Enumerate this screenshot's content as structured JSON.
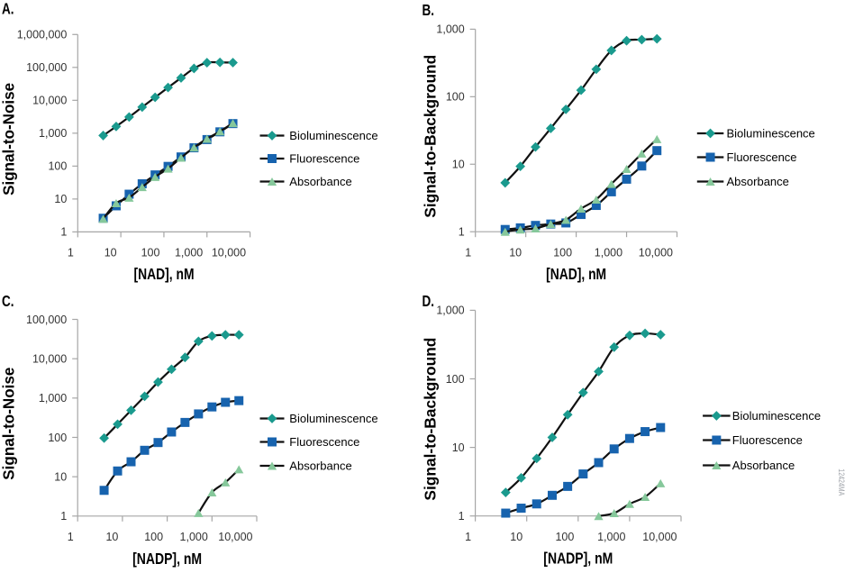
{
  "figure": {
    "side_code": "12424MA",
    "background": "#ffffff",
    "colors": {
      "series_line": "#111111",
      "axis": "#a6a6a6",
      "tick_label": "#333333",
      "text": "#000000",
      "bioluminescence": "#1a9a8e",
      "fluorescence": "#1763ae",
      "absorbance": "#86c89b",
      "side_code": "#9fa3a9"
    },
    "legend": [
      {
        "label": "Bioluminescence",
        "marker": "diamond",
        "color": "#1a9a8e"
      },
      {
        "label": "Fluorescence",
        "marker": "square",
        "color": "#1763ae"
      },
      {
        "label": "Absorbance",
        "marker": "triangle",
        "color": "#86c89b"
      }
    ]
  },
  "chart_data": [
    {
      "panel_label": "A.",
      "type": "line",
      "xscale": "log",
      "yscale": "log",
      "xlabel": "[NAD], nM",
      "ylabel": "Signal-to-Noise",
      "xlim": [
        1,
        10000
      ],
      "ylim": [
        1,
        1000000
      ],
      "x_tick_labels": [
        "1",
        "10",
        "100",
        "1,000",
        "10,000"
      ],
      "y_tick_labels": [
        "1",
        "10",
        "100",
        "1,000",
        "10,000",
        "100,000",
        "1,000,000"
      ],
      "x": [
        3.9,
        7.8,
        15.6,
        31.3,
        62.5,
        125,
        250,
        500,
        1000,
        2000,
        4000
      ],
      "series": [
        {
          "name": "Bioluminescence",
          "marker": "diamond",
          "color": "#1a9a8e",
          "values": [
            850,
            1600,
            3100,
            6200,
            12300,
            24500,
            48000,
            93000,
            139000,
            142000,
            140000
          ]
        },
        {
          "name": "Fluorescence",
          "marker": "square",
          "color": "#1763ae",
          "values": [
            2.6,
            6.2,
            14,
            29,
            54,
            98,
            190,
            360,
            640,
            1100,
            1960
          ]
        },
        {
          "name": "Absorbance",
          "marker": "triangle",
          "color": "#86c89b",
          "values": [
            2.5,
            7.5,
            11,
            23,
            47,
            84,
            180,
            370,
            680,
            1140,
            2030
          ]
        }
      ]
    },
    {
      "panel_label": "B.",
      "type": "line",
      "xscale": "log",
      "yscale": "log",
      "xlabel": "[NAD], nM",
      "ylabel": "Signal-to-Background",
      "xlim": [
        1,
        10000
      ],
      "ylim": [
        1,
        1000
      ],
      "x_tick_labels": [
        "1",
        "10",
        "100",
        "1,000",
        "10,000"
      ],
      "y_tick_labels": [
        "1",
        "10",
        "100",
        "1,000"
      ],
      "x": [
        3.9,
        7.8,
        15.6,
        31.3,
        62.5,
        125,
        250,
        500,
        1000,
        2000,
        4000
      ],
      "series": [
        {
          "name": "Bioluminescence",
          "marker": "diamond",
          "color": "#1a9a8e",
          "values": [
            5.3,
            9.3,
            18,
            34,
            65,
            125,
            255,
            485,
            675,
            700,
            720
          ]
        },
        {
          "name": "Fluorescence",
          "marker": "square",
          "color": "#1763ae",
          "values": [
            1.08,
            1.14,
            1.24,
            1.3,
            1.35,
            1.8,
            2.45,
            3.9,
            6.0,
            9.4,
            15.9
          ]
        },
        {
          "name": "Absorbance",
          "marker": "triangle",
          "color": "#86c89b",
          "values": [
            1.0,
            1.08,
            1.12,
            1.3,
            1.5,
            2.2,
            3.0,
            5.1,
            8.5,
            14.4,
            23.6
          ]
        }
      ]
    },
    {
      "panel_label": "C.",
      "type": "line",
      "xscale": "log",
      "yscale": "log",
      "xlabel": "[NADP], nM",
      "ylabel": "Signal-to-Noise",
      "xlim": [
        1,
        10000
      ],
      "ylim": [
        1,
        100000
      ],
      "x_tick_labels": [
        "1",
        "10",
        "100",
        "1,000",
        "10,000"
      ],
      "y_tick_labels": [
        "1",
        "10",
        "100",
        "1,000",
        "10,000",
        "100,000"
      ],
      "x": [
        3.9,
        7.8,
        15.6,
        31.3,
        62.5,
        125,
        250,
        500,
        1000,
        2000,
        4000
      ],
      "series": [
        {
          "name": "Bioluminescence",
          "marker": "diamond",
          "color": "#1a9a8e",
          "values": [
            96,
            216,
            490,
            1110,
            2550,
            5400,
            10800,
            27600,
            38000,
            40500,
            40500
          ]
        },
        {
          "name": "Fluorescence",
          "marker": "square",
          "color": "#1763ae",
          "values": [
            4.5,
            14,
            24,
            47,
            74,
            137,
            240,
            395,
            595,
            780,
            860
          ]
        },
        {
          "name": "Absorbance",
          "marker": "triangle",
          "color": "#86c89b",
          "x": [
            500,
            1000,
            2000,
            4000
          ],
          "values": [
            1.2,
            4.0,
            7.2,
            15.5
          ]
        }
      ]
    },
    {
      "panel_label": "D.",
      "type": "line",
      "xscale": "log",
      "yscale": "log",
      "xlabel": "[NADP], nM",
      "ylabel": "Signal-to-Background",
      "xlim": [
        1,
        10000
      ],
      "ylim": [
        1,
        1000
      ],
      "x_tick_labels": [
        "1",
        "10",
        "100",
        "1,000",
        "10,000"
      ],
      "y_tick_labels": [
        "1",
        "10",
        "100",
        "1,000"
      ],
      "x": [
        3.9,
        7.8,
        15.6,
        31.3,
        62.5,
        125,
        250,
        500,
        1000,
        2000,
        4000
      ],
      "series": [
        {
          "name": "Bioluminescence",
          "marker": "diamond",
          "color": "#1a9a8e",
          "values": [
            2.2,
            3.6,
            6.9,
            14,
            30,
            63,
            128,
            290,
            430,
            460,
            440
          ]
        },
        {
          "name": "Fluorescence",
          "marker": "square",
          "color": "#1763ae",
          "values": [
            1.1,
            1.3,
            1.5,
            2.0,
            2.7,
            4.1,
            6.0,
            9.5,
            13.5,
            17,
            19.5
          ]
        },
        {
          "name": "Absorbance",
          "marker": "triangle",
          "color": "#86c89b",
          "x": [
            250,
            500,
            1000,
            2000,
            4000
          ],
          "values": [
            1.0,
            1.1,
            1.5,
            1.9,
            3.0
          ]
        }
      ]
    }
  ]
}
